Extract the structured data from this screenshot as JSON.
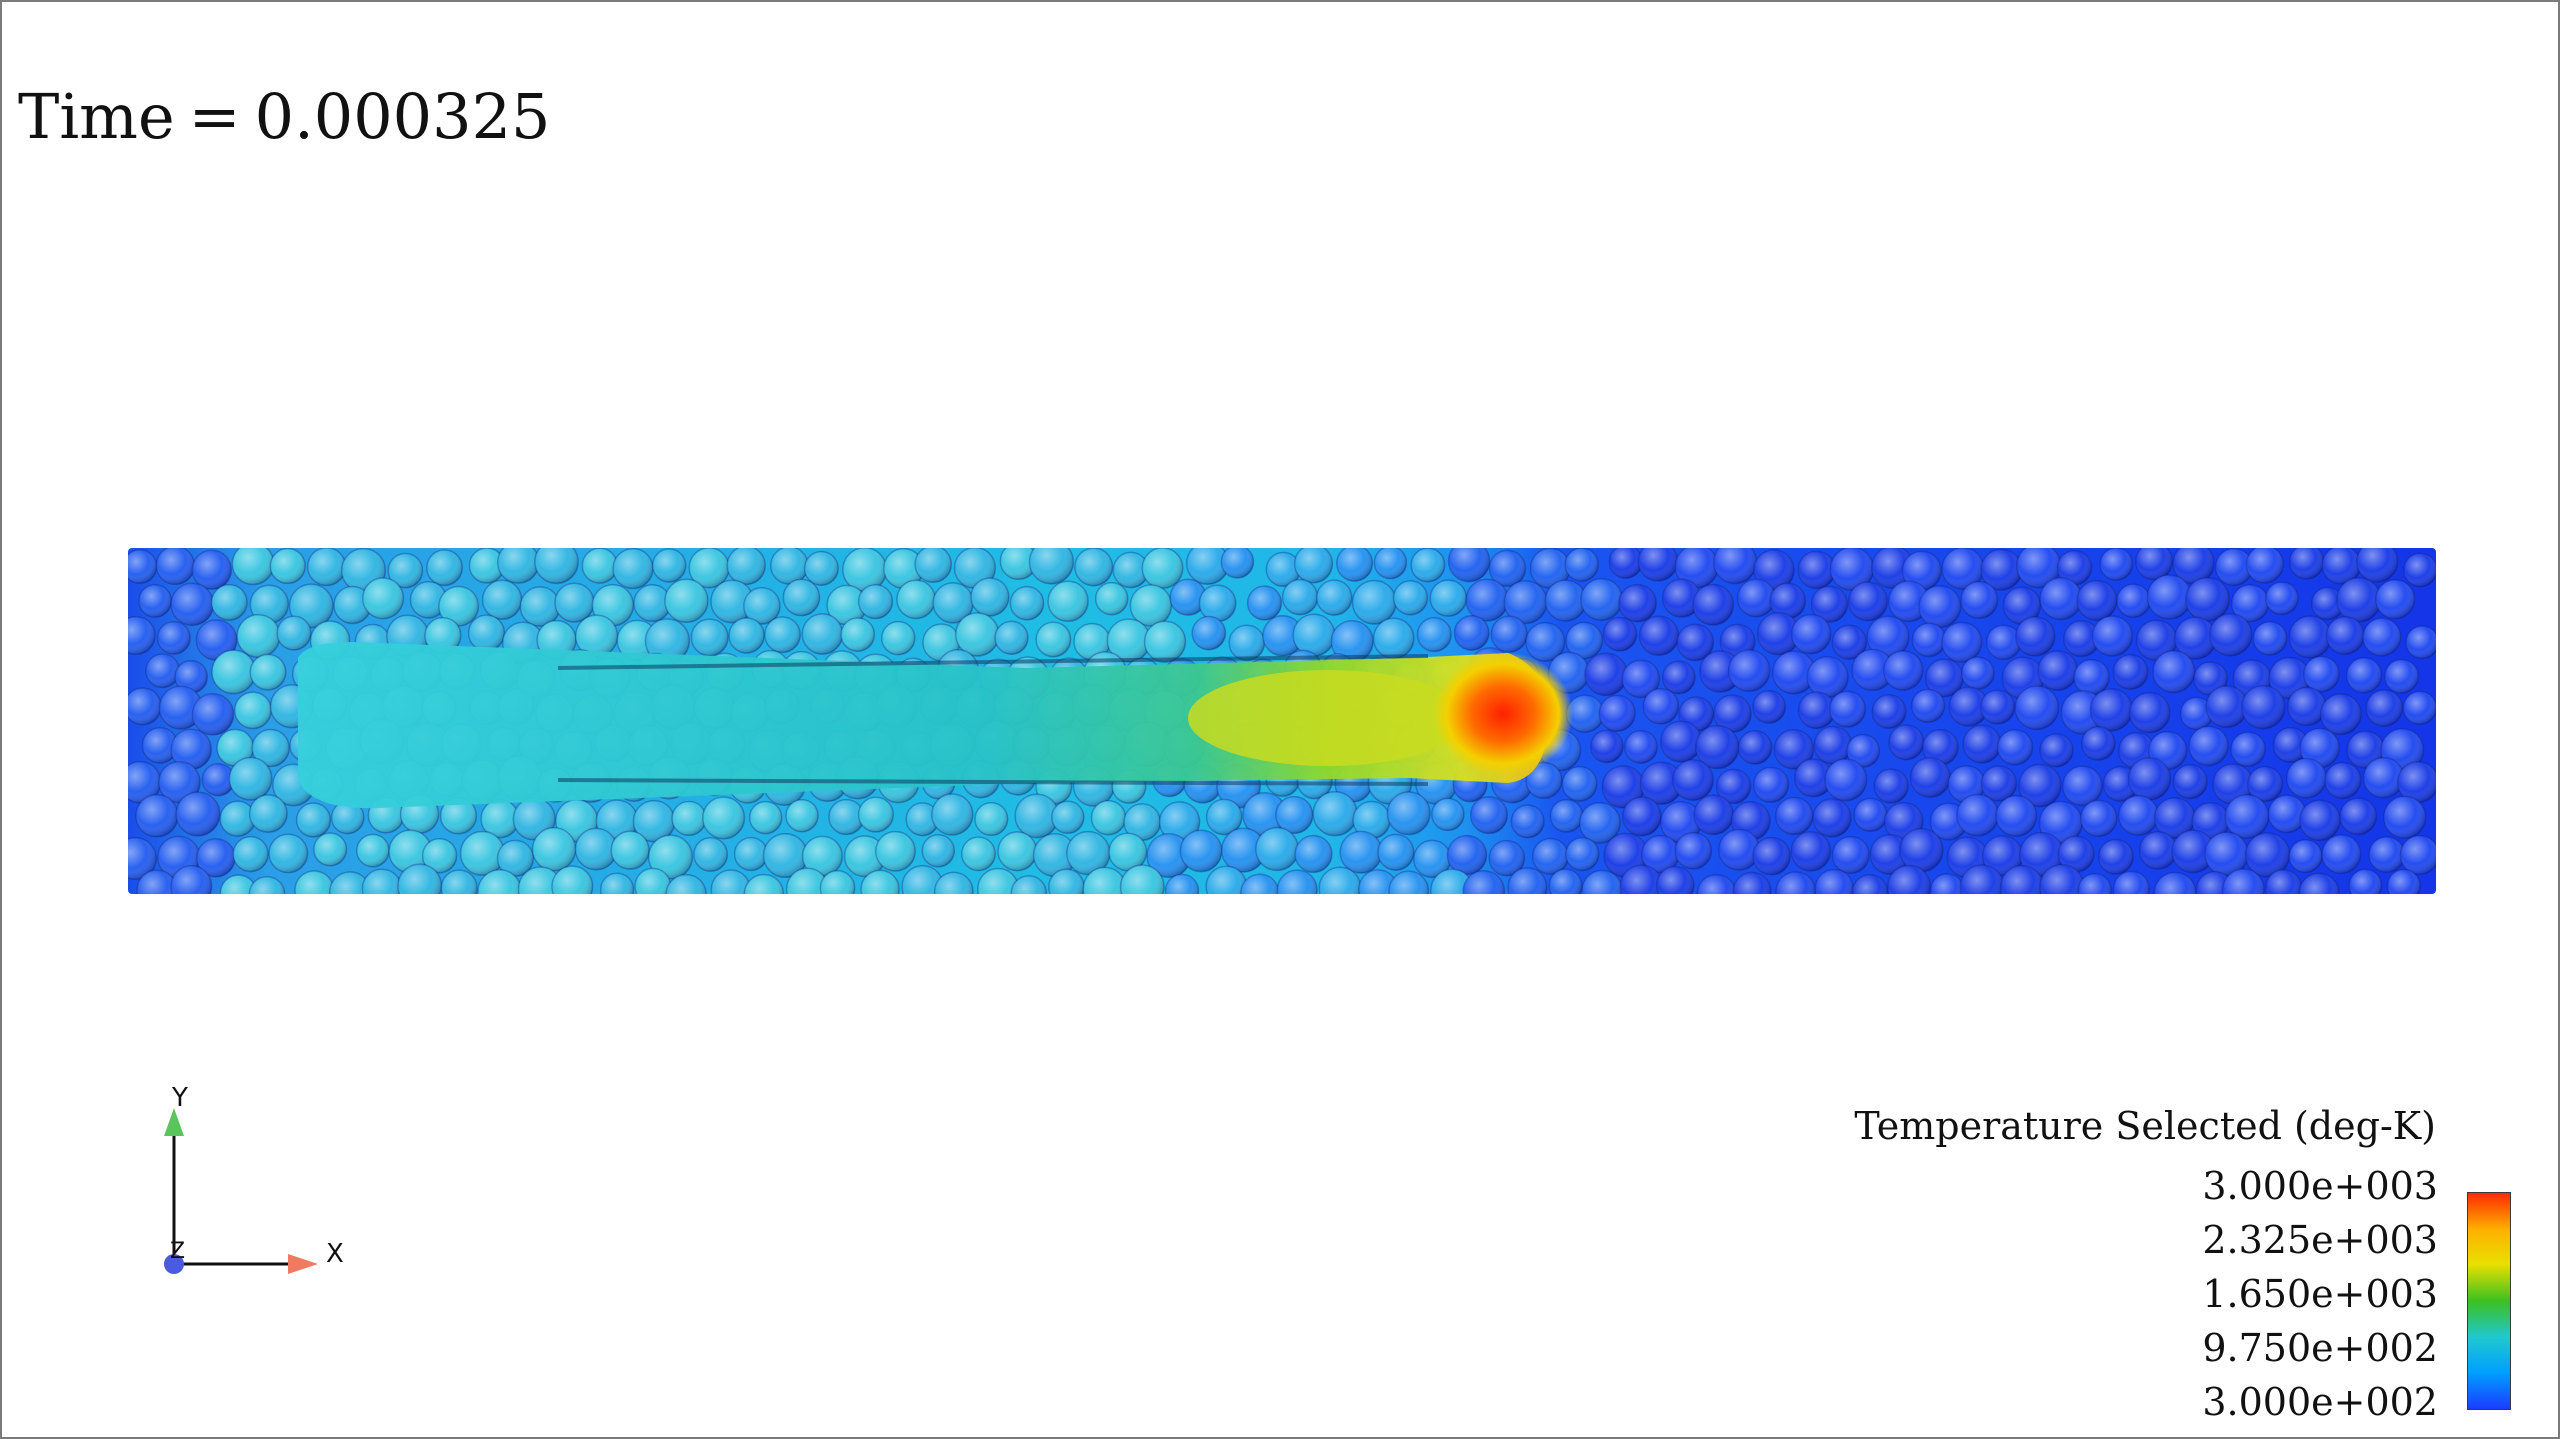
{
  "time": {
    "label": "Time",
    "equals": "=",
    "value": "0.000325"
  },
  "axes": {
    "x": "X",
    "y": "Y",
    "z": "Z",
    "x_color": "#f07a60",
    "y_color": "#5cc45c",
    "z_color": "#4a5be0"
  },
  "legend": {
    "title": "Temperature Selected (deg-K)",
    "ticks": [
      "3.000e+003",
      "2.325e+003",
      "1.650e+003",
      "9.750e+002",
      "3.000e+002"
    ],
    "colormap": [
      "#ff2a00",
      "#ffb000",
      "#e8e000",
      "#3cc020",
      "#20c8d0",
      "#00a0ff",
      "#1a3cff"
    ]
  },
  "scene": {
    "colors": {
      "cold": "#1435e8",
      "warm": "#21b6e8",
      "hot": "#b8d81a",
      "peak": "#ff2a00"
    }
  }
}
